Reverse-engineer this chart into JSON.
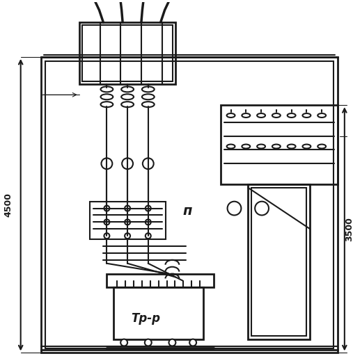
{
  "bg_color": "#ffffff",
  "line_color": "#1a1a1a",
  "line_width": 1.5,
  "fig_width": 5.07,
  "fig_height": 5.22,
  "dpi": 100,
  "label_4500": "4500",
  "label_3500": "3500",
  "label_P": "п",
  "label_Trr": "Тр-р"
}
